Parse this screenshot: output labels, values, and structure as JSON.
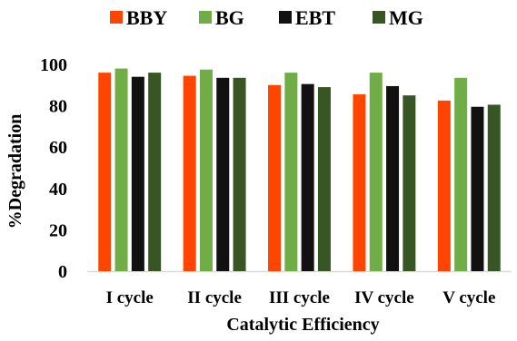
{
  "chart_data": {
    "type": "bar",
    "title": "",
    "xlabel": "Catalytic Efficiency",
    "ylabel": "%Degradation",
    "ylim": [
      0,
      100
    ],
    "yticks": [
      0,
      20,
      40,
      60,
      80,
      100
    ],
    "grid": false,
    "legend_position": "top",
    "categories": [
      "I cycle",
      "II cycle",
      "III cycle",
      "IV cycle",
      "V cycle"
    ],
    "series": [
      {
        "name": "BBY",
        "color": "#ff4500",
        "values": [
          96,
          94.5,
          90,
          85.5,
          82.5
        ]
      },
      {
        "name": "BG",
        "color": "#70ad47",
        "values": [
          98,
          97.5,
          96,
          96,
          93.5
        ]
      },
      {
        "name": "EBT",
        "color": "#111111",
        "values": [
          94,
          93.5,
          90.5,
          89.5,
          79.5
        ]
      },
      {
        "name": "MG",
        "color": "#375623",
        "values": [
          96,
          93.5,
          89,
          85,
          80.5
        ]
      }
    ]
  }
}
